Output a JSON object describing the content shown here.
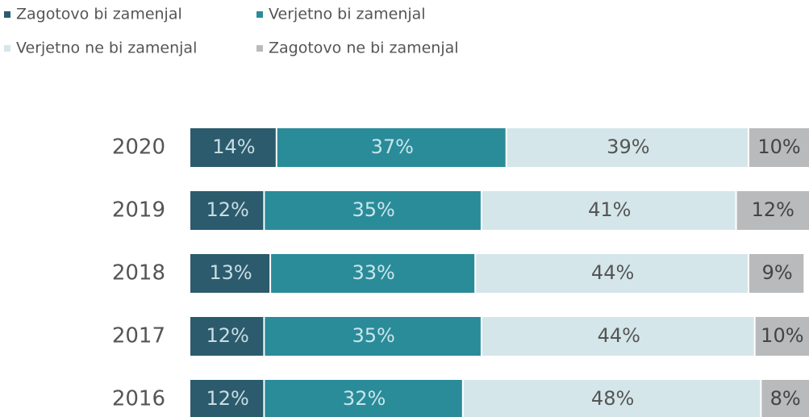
{
  "chart_data": {
    "type": "stacked-bar-horizontal",
    "categories": [
      "2020",
      "2019",
      "2018",
      "2017",
      "2016"
    ],
    "xlim": [
      0,
      100
    ],
    "legend": "top-left",
    "series": [
      {
        "name": "Zagotovo bi zamenjal",
        "color": "#2b5b6d",
        "values": [
          14,
          12,
          13,
          12,
          12
        ],
        "value_labels": [
          "14%",
          "12%",
          "13%",
          "12%",
          "12%"
        ]
      },
      {
        "name": "Verjetno bi zamenjal",
        "color": "#2a8b99",
        "values": [
          37,
          35,
          33,
          35,
          32
        ],
        "value_labels": [
          "37%",
          "35%",
          "33%",
          "35%",
          "32%"
        ]
      },
      {
        "name": "Verjetno ne bi zamenjal",
        "color": "#d5e6ea",
        "values": [
          39,
          41,
          44,
          44,
          48
        ],
        "value_labels": [
          "39%",
          "41%",
          "44%",
          "44%",
          "48%"
        ]
      },
      {
        "name": "Zagotovo ne bi zamenjal",
        "color": "#b8babb",
        "values": [
          10,
          12,
          9,
          10,
          8
        ],
        "value_labels": [
          "10%",
          "12%",
          "9%",
          "10%",
          "8%"
        ]
      }
    ]
  }
}
